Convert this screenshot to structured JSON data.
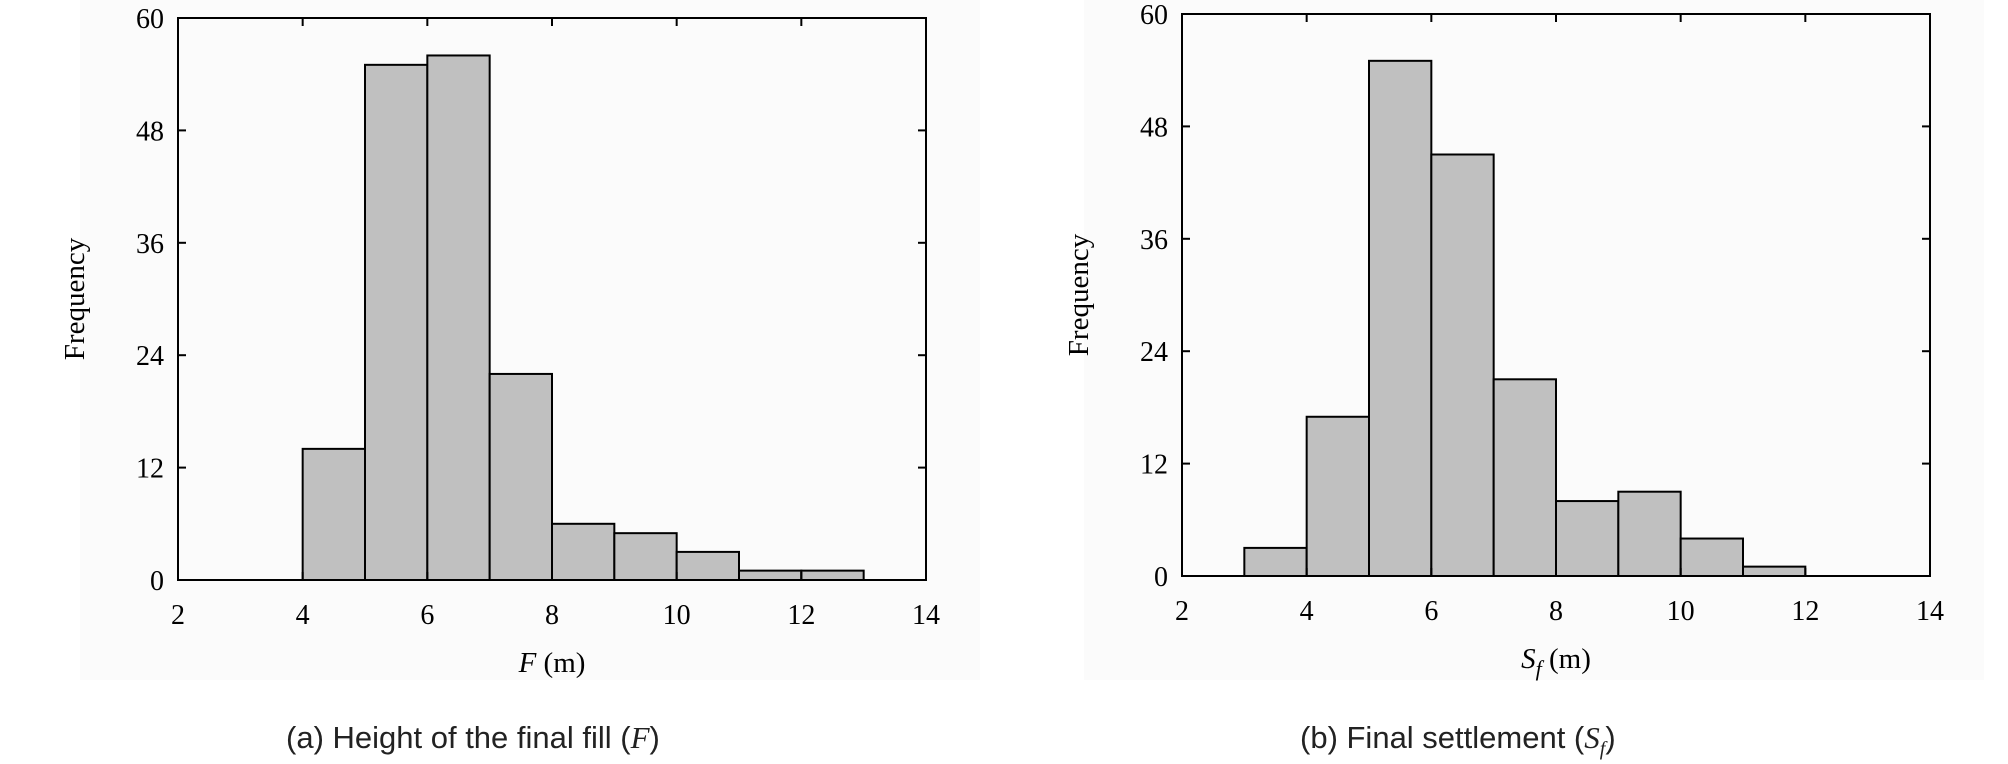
{
  "captions": [
    {
      "prefix": "(a) Height of the final fill (",
      "symbol": "F",
      "sub": "",
      "suffix": ")"
    },
    {
      "prefix": "(b) Final settlement (",
      "symbol": "S",
      "sub": "f",
      "suffix": ")"
    }
  ],
  "chart_data": [
    {
      "type": "bar",
      "title": "",
      "xlabel": {
        "symbol": "F",
        "sub": "",
        "unit": " (m)"
      },
      "ylabel": "Frequency",
      "xlim": [
        2,
        14
      ],
      "ylim": [
        0,
        60
      ],
      "xticks": [
        2,
        4,
        6,
        8,
        10,
        12,
        14
      ],
      "yticks": [
        0,
        12,
        24,
        36,
        48,
        60
      ],
      "bin_edges": [
        4,
        5,
        6,
        7,
        8,
        9,
        10,
        11,
        12,
        13
      ],
      "values": [
        14,
        55,
        56,
        22,
        6,
        5,
        3,
        1,
        1
      ],
      "bar_color": "#c0c0c0",
      "edge_color": "#000000",
      "grid": false
    },
    {
      "type": "bar",
      "title": "",
      "xlabel": {
        "symbol": "S",
        "sub": "f",
        "unit": " (m)"
      },
      "ylabel": "Frequency",
      "xlim": [
        2,
        14
      ],
      "ylim": [
        0,
        60
      ],
      "xticks": [
        2,
        4,
        6,
        8,
        10,
        12,
        14
      ],
      "yticks": [
        0,
        12,
        24,
        36,
        48,
        60
      ],
      "bin_edges": [
        3,
        4,
        5,
        6,
        7,
        8,
        9,
        10,
        11,
        12
      ],
      "values": [
        3,
        17,
        55,
        45,
        21,
        8,
        9,
        4,
        1
      ],
      "bar_color": "#c0c0c0",
      "edge_color": "#000000",
      "grid": false
    }
  ]
}
